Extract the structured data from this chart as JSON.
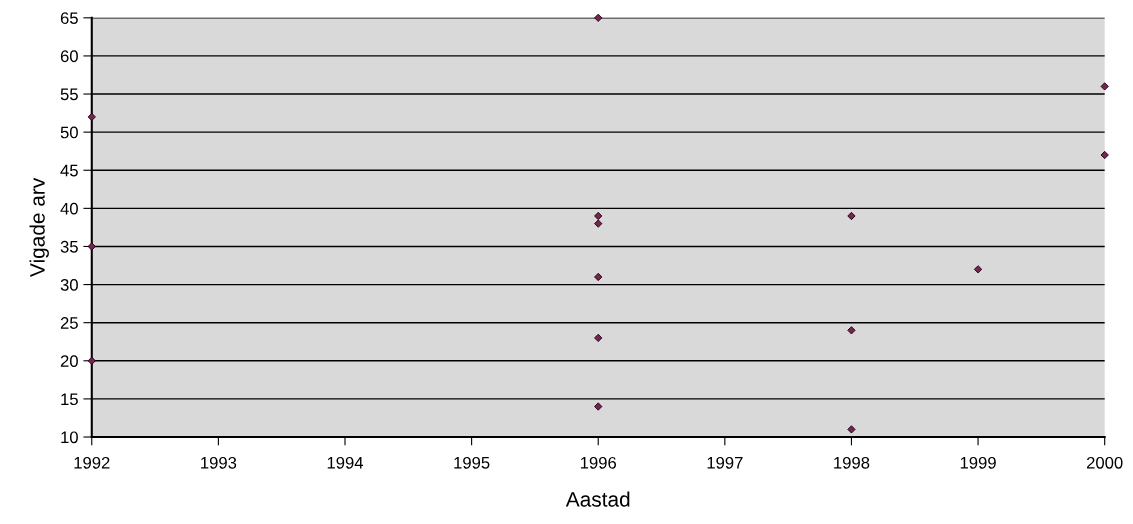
{
  "chart_data": {
    "type": "scatter",
    "xlabel": "Aastad",
    "ylabel": "Vigade arv",
    "x": [
      1992,
      1992,
      1992,
      1996,
      1996,
      1996,
      1996,
      1996,
      1996,
      1998,
      1998,
      1998,
      1999,
      2000,
      2000
    ],
    "series": [
      {
        "color": "#7f2050",
        "values": [
          52,
          35,
          20,
          65,
          39,
          38,
          31,
          23,
          14,
          39,
          24,
          11,
          32,
          56,
          47
        ]
      }
    ],
    "xlim": [
      1992,
      2000
    ],
    "xticks": [
      1992,
      1993,
      1994,
      1995,
      1996,
      1997,
      1998,
      1999,
      2000
    ],
    "ylim": [
      10,
      65
    ],
    "yticks": [
      10,
      15,
      20,
      25,
      30,
      35,
      40,
      45,
      50,
      55,
      60,
      65
    ],
    "grid": "y",
    "marker": "diamond"
  }
}
